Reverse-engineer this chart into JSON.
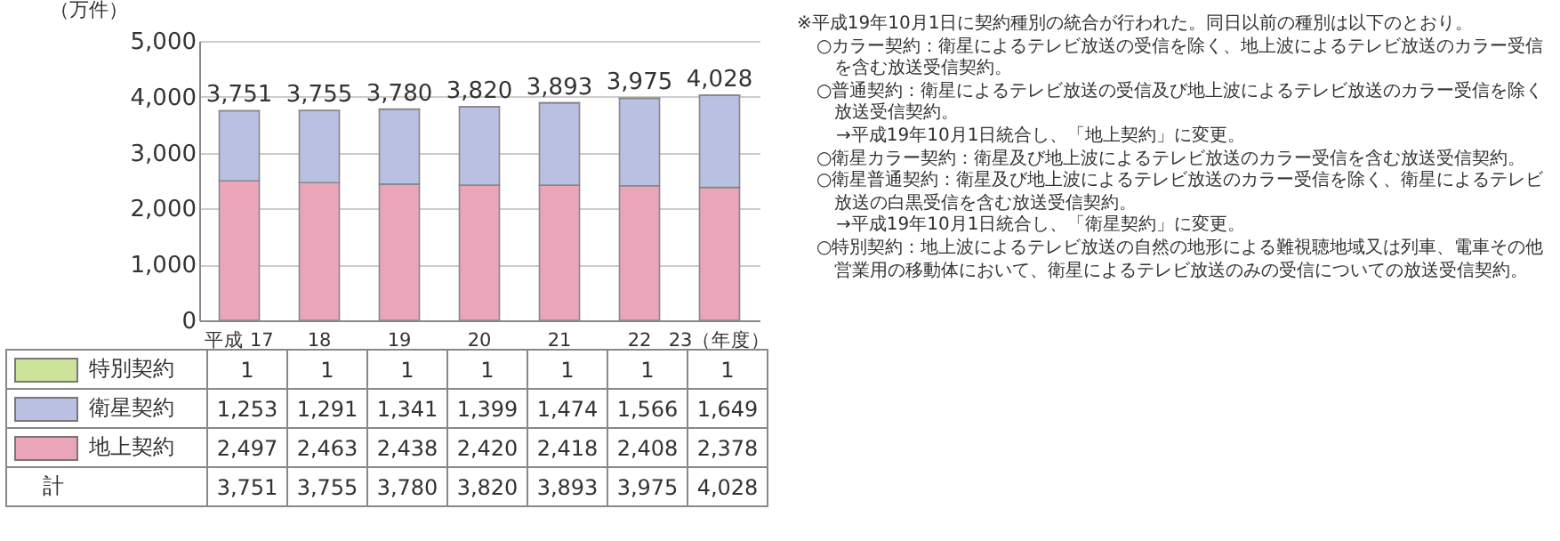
{
  "chart_data": {
    "type": "bar",
    "stacked": true,
    "ylabel": "（万件）",
    "categories": [
      "平成 17",
      "18",
      "19",
      "20",
      "21",
      "22",
      "23（年度）"
    ],
    "series": [
      {
        "name": "地上契約",
        "color": "#eaa6b8",
        "values": [
          2497,
          2463,
          2438,
          2420,
          2418,
          2408,
          2378
        ],
        "value_labels": [
          "2,497",
          "2,463",
          "2,438",
          "2,420",
          "2,418",
          "2,408",
          "2,378"
        ]
      },
      {
        "name": "衛星契約",
        "color": "#b9c0e2",
        "values": [
          1253,
          1291,
          1341,
          1399,
          1474,
          1566,
          1649
        ],
        "value_labels": [
          "1,253",
          "1,291",
          "1,341",
          "1,399",
          "1,474",
          "1,566",
          "1,649"
        ]
      },
      {
        "name": "特別契約",
        "color": "#cde39a",
        "values": [
          1,
          1,
          1,
          1,
          1,
          1,
          1
        ],
        "value_labels": [
          "1",
          "1",
          "1",
          "1",
          "1",
          "1",
          "1"
        ]
      }
    ],
    "totals": [
      "3,751",
      "3,755",
      "3,780",
      "3,820",
      "3,893",
      "3,975",
      "4,028"
    ],
    "ylim": [
      0,
      5000
    ],
    "yticks": [
      0,
      {
        "value": 1000,
        "label": "1,000"
      },
      {
        "value": 2000,
        "label": "2,000"
      },
      {
        "value": 3000,
        "label": "3,000"
      },
      {
        "value": 4000,
        "label": "4,000"
      },
      {
        "value": 5000,
        "label": "5,000"
      }
    ],
    "grid": "y",
    "legend": "bottom left",
    "annotations": [
      "計",
      "※平成19年10月1日に契約種別の統合が行われた。同日以前の種別は以下のとおり。",
      "○カラー契約：衛星によるテレビ放送の受信を除く、地上波によるテレビ放送のカラー受信を含む放送受信契約。",
      "○普通契約：衛星によるテレビ放送の受信及び地上波によるテレビ放送のカラー受信を除く放送受信契約。",
      "→平成19年10月1日統合し、「地上契約」に変更。",
      "○衛星カラー契約：衛星及び地上波によるテレビ放送のカラー受信を含む放送受信契約。",
      "○衛星普通契約：衛星及び地上波によるテレビ放送のカラー受信を除く、衛星によるテレビ放送の白黒受信を含む放送受信契約。",
      "→平成19年10月1日統合し、「衛星契約」に変更。",
      "○特別契約：地上波によるテレビ放送の自然の地形による難視聴地域又は列車、電車その他営業用の移動体において、衛星によるテレビ放送のみの受信についての放送受信契約。"
    ]
  }
}
